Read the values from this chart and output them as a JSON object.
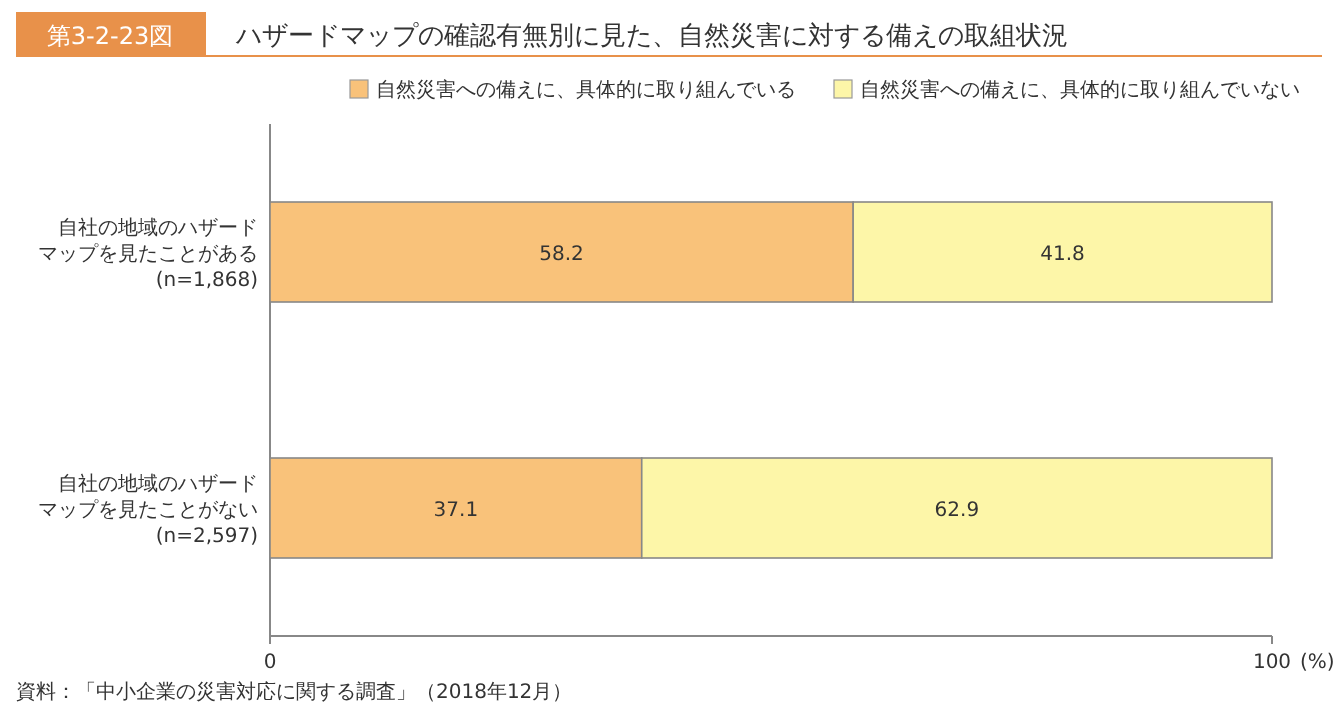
{
  "chart_data": {
    "type": "bar",
    "orientation": "horizontal",
    "stacked": true,
    "title": "ハザードマップの確認有無別に見た、自然災害に対する備えの取組状況",
    "categories": [
      "自社の地域のハザードマップを見たことがある\n(n=1,868)",
      "自社の地域のハザードマップを見たことがない\n(n=2,597)"
    ],
    "series": [
      {
        "name": "自然災害への備えに、具体的に取り組んでいる",
        "color": "#f9c27a",
        "values": [
          58.2,
          37.1
        ]
      },
      {
        "name": "自然災害への備えに、具体的に取り組んでいない",
        "color": "#fdf6a8",
        "values": [
          41.8,
          62.9
        ]
      }
    ],
    "xlim": [
      0,
      100
    ],
    "xticks": [
      0,
      100
    ],
    "xlabel": "(%)",
    "data_labels": true,
    "legend": "top right",
    "annotations": [
      "第3-2-23図",
      "資料：「中小企業の災害対応に関する調査」（2018年12月）"
    ]
  }
}
